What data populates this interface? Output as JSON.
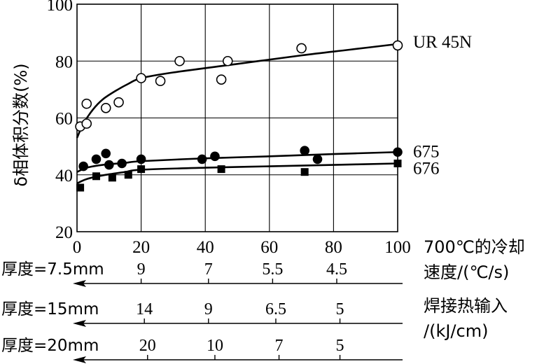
{
  "chart_data": {
    "type": "scatter",
    "title": "",
    "xlabel": "700℃的冷却速度/(℃/s)",
    "ylabel": "δ相体积分数(%)",
    "xlim": [
      0,
      100
    ],
    "ylim": [
      20,
      100
    ],
    "x_ticks": [
      0,
      20,
      40,
      60,
      80,
      100
    ],
    "y_ticks": [
      20,
      40,
      60,
      80,
      100
    ],
    "grid": true,
    "series": [
      {
        "name": "UR 45N",
        "marker": "open-circle",
        "points": [
          [
            1,
            57
          ],
          [
            3,
            58
          ],
          [
            3,
            65
          ],
          [
            9,
            63.5
          ],
          [
            13,
            65.5
          ],
          [
            20,
            74
          ],
          [
            26,
            73
          ],
          [
            32,
            80
          ],
          [
            45,
            73.5
          ],
          [
            47,
            80
          ],
          [
            70,
            84.5
          ],
          [
            100,
            85.5
          ]
        ],
        "curve": [
          [
            0,
            53
          ],
          [
            2,
            58
          ],
          [
            5,
            63
          ],
          [
            8,
            66.5
          ],
          [
            12,
            69.5
          ],
          [
            16,
            72
          ],
          [
            20,
            74
          ],
          [
            30,
            76
          ],
          [
            50,
            79
          ],
          [
            70,
            82
          ],
          [
            85,
            84
          ],
          [
            100,
            86
          ]
        ]
      },
      {
        "name": "675",
        "marker": "filled-circle",
        "points": [
          [
            2,
            43
          ],
          [
            6,
            45.5
          ],
          [
            9,
            47.5
          ],
          [
            10,
            43.5
          ],
          [
            14,
            44
          ],
          [
            20,
            45.5
          ],
          [
            39,
            45.5
          ],
          [
            43,
            46.5
          ],
          [
            71,
            48.5
          ],
          [
            75,
            45.5
          ],
          [
            100,
            48
          ]
        ],
        "curve": [
          [
            0,
            41
          ],
          [
            3,
            42.5
          ],
          [
            8,
            43.5
          ],
          [
            15,
            44.2
          ],
          [
            20,
            44.8
          ],
          [
            40,
            45.8
          ],
          [
            60,
            46.5
          ],
          [
            80,
            47.3
          ],
          [
            100,
            48
          ]
        ]
      },
      {
        "name": "676",
        "marker": "filled-square",
        "points": [
          [
            1,
            35.5
          ],
          [
            6,
            39.5
          ],
          [
            11,
            39
          ],
          [
            16,
            40
          ],
          [
            20,
            42
          ],
          [
            45,
            42
          ],
          [
            71,
            41
          ],
          [
            100,
            44
          ]
        ],
        "curve": [
          [
            0,
            37
          ],
          [
            3,
            38.5
          ],
          [
            8,
            39.8
          ],
          [
            15,
            41
          ],
          [
            20,
            41.8
          ],
          [
            40,
            42.5
          ],
          [
            60,
            43
          ],
          [
            80,
            43.5
          ],
          [
            100,
            44
          ]
        ]
      }
    ],
    "secondary_axes": [
      {
        "thickness_label": "厚度=7.5mm",
        "ticks": [
          {
            "x": 20,
            "label": "9"
          },
          {
            "x": 41,
            "label": "7"
          },
          {
            "x": 61,
            "label": "5.5"
          },
          {
            "x": 81,
            "label": "4.5"
          }
        ]
      },
      {
        "thickness_label": "厚度=15mm",
        "ticks": [
          {
            "x": 21,
            "label": "14"
          },
          {
            "x": 41,
            "label": "9"
          },
          {
            "x": 62,
            "label": "6.5"
          },
          {
            "x": 82,
            "label": "5"
          }
        ]
      },
      {
        "thickness_label": "厚度=20mm",
        "ticks": [
          {
            "x": 22,
            "label": "20"
          },
          {
            "x": 43,
            "label": "10"
          },
          {
            "x": 63,
            "label": "7"
          },
          {
            "x": 82,
            "label": "5"
          }
        ]
      }
    ],
    "x_axis_title_lines": [
      "700℃的冷却",
      "速度/(℃/s)"
    ],
    "heat_input_title_lines": [
      "焊接热输入",
      "/(kJ/cm)"
    ]
  }
}
